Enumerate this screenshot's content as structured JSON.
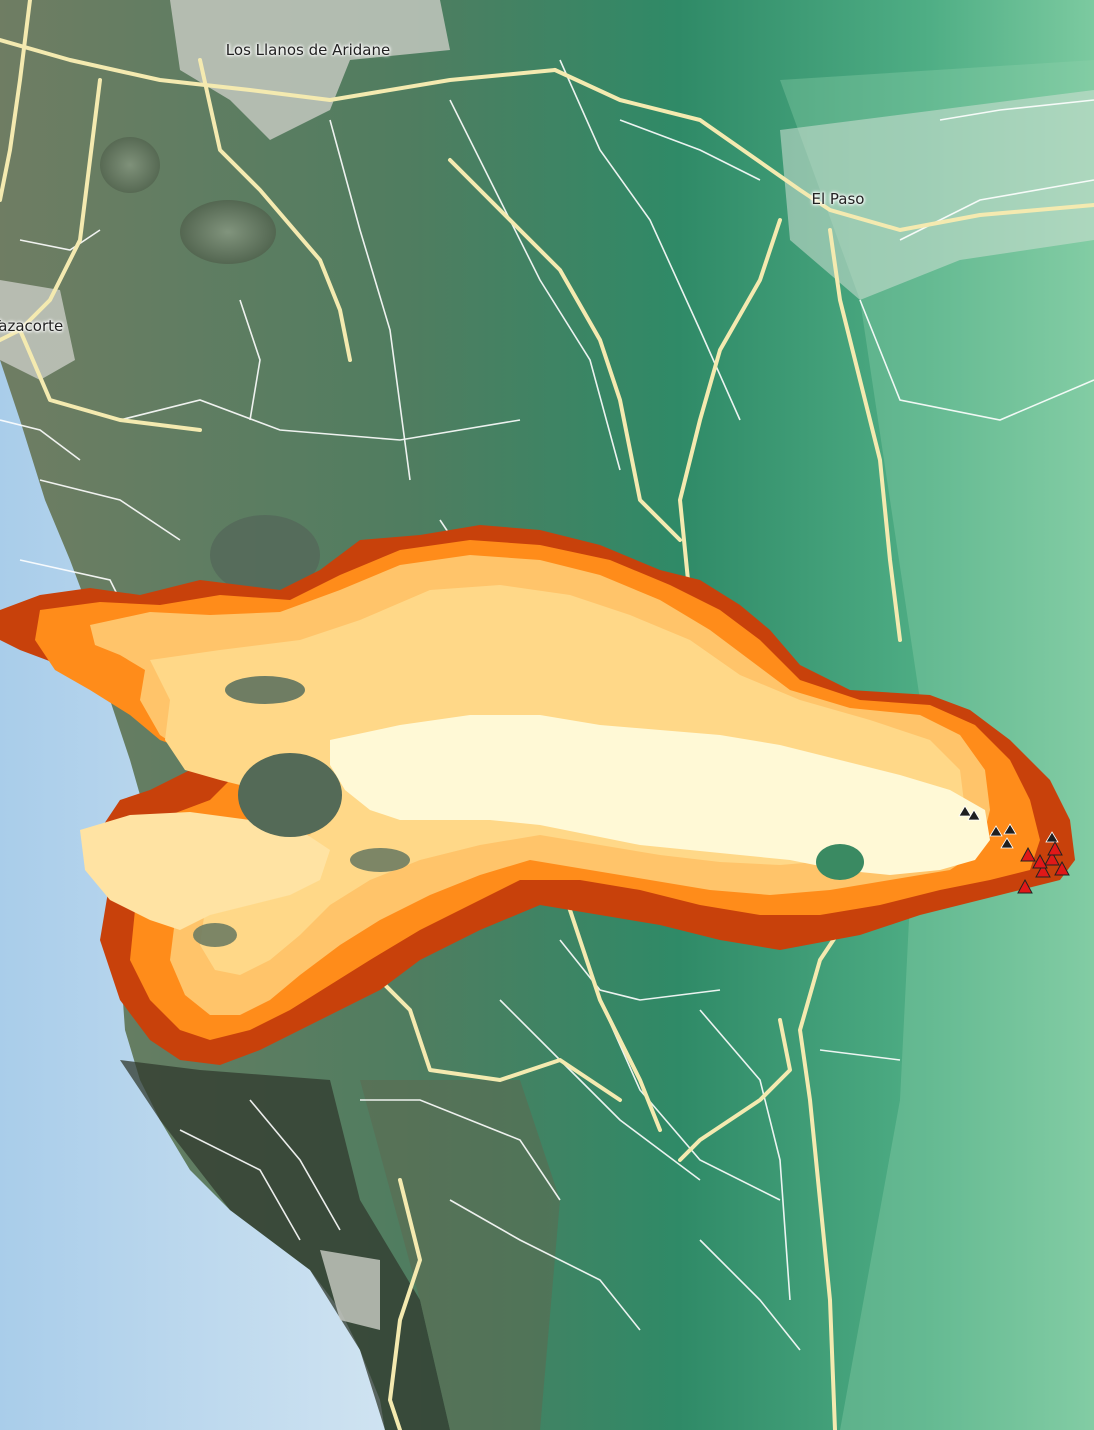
{
  "map": {
    "places": {
      "los_llanos": "Los Llanos de Aridane",
      "el_paso": "El Paso",
      "tazacorte": "Tazacorte"
    },
    "legend_colors": {
      "sea": "#b9d6ec",
      "lowland": "#6f7d63",
      "highland": "#2f8a67",
      "upper_slope": "#7ccaa0",
      "main_road": "#f4eab0",
      "minor_road": "#ffffff",
      "urban": "#cfd2cc",
      "lava_oldest": "#fffbe0",
      "lava_early": "#ffd27a",
      "lava_mid": "#ff8c1a",
      "lava_latest": "#c8410b",
      "vent_active": "#e01818",
      "vent_inactive": "#222222"
    },
    "markers": {
      "vents_active_count": 7,
      "vents_inactive_count": 6
    }
  }
}
